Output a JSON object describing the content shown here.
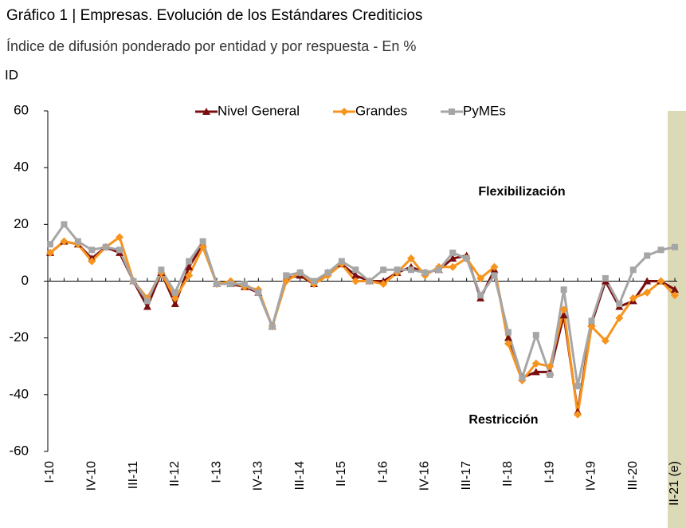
{
  "chart_data": {
    "type": "line",
    "title": "Gráfico 1 | Empresas. Evolución de los Estándares Crediticios",
    "subtitle": "Índice de difusión ponderado por entidad y por respuesta - En %",
    "y_label": "ID",
    "annotations": [
      "Flexibilización",
      "Restricción"
    ],
    "categories": [
      "I-10",
      null,
      null,
      "IV-10",
      null,
      null,
      "III-11",
      null,
      null,
      "II-12",
      null,
      null,
      "I-13",
      null,
      null,
      "IV-13",
      null,
      null,
      "III-14",
      null,
      null,
      "II-15",
      null,
      null,
      "I-16",
      null,
      null,
      "IV-16",
      null,
      null,
      "III-17",
      null,
      null,
      "II-18",
      null,
      null,
      "I-19",
      null,
      null,
      "IV-19",
      null,
      null,
      "III-20",
      null,
      null,
      "II-21 (e)"
    ],
    "series": [
      {
        "name": "Nivel General",
        "color": "#7b0f0f",
        "marker": "triangle",
        "values": [
          10,
          14,
          13,
          8,
          12,
          10,
          0,
          -9,
          3,
          -8,
          5,
          13,
          -1,
          -1,
          -2,
          -4,
          -16,
          1,
          2,
          -1,
          3,
          6,
          2,
          0,
          0,
          3,
          5,
          3,
          4,
          8,
          9,
          -6,
          4,
          -20,
          -34,
          -32,
          -32,
          -12,
          -46,
          -15,
          0,
          -9,
          -7,
          0,
          0,
          -3
        ]
      },
      {
        "name": "Grandes",
        "color": "#f7941d",
        "marker": "diamond",
        "values": [
          10,
          14,
          13,
          7,
          12,
          15.5,
          0,
          -6,
          3,
          -6,
          2,
          12,
          -1,
          0,
          -2,
          -3,
          -16,
          0,
          3,
          -1,
          2,
          6,
          0,
          0,
          -1,
          3,
          8,
          2,
          5,
          5,
          8,
          1,
          5,
          -22,
          -35,
          -29,
          -30,
          -10,
          -47,
          -16,
          -21,
          -13,
          -6,
          -4,
          0,
          -5
        ]
      },
      {
        "name": "PyMEs",
        "color": "#a6a6a6",
        "marker": "square",
        "values": [
          13,
          20,
          14,
          11,
          12,
          11,
          0,
          -7,
          4,
          -4,
          7,
          14,
          -1,
          -1,
          -1,
          -4,
          -16,
          2,
          3,
          0,
          3,
          7,
          4,
          0,
          4,
          4,
          4,
          3,
          4,
          10,
          8,
          -5,
          2,
          -18,
          -34,
          -19,
          -33,
          -3,
          -37,
          -14,
          1,
          -8,
          4,
          9,
          11,
          12
        ]
      }
    ],
    "ylim": [
      -60,
      60
    ],
    "yticks": [
      -60,
      -40,
      -20,
      0,
      20,
      40,
      60
    ],
    "grid": false,
    "legend": "top"
  }
}
